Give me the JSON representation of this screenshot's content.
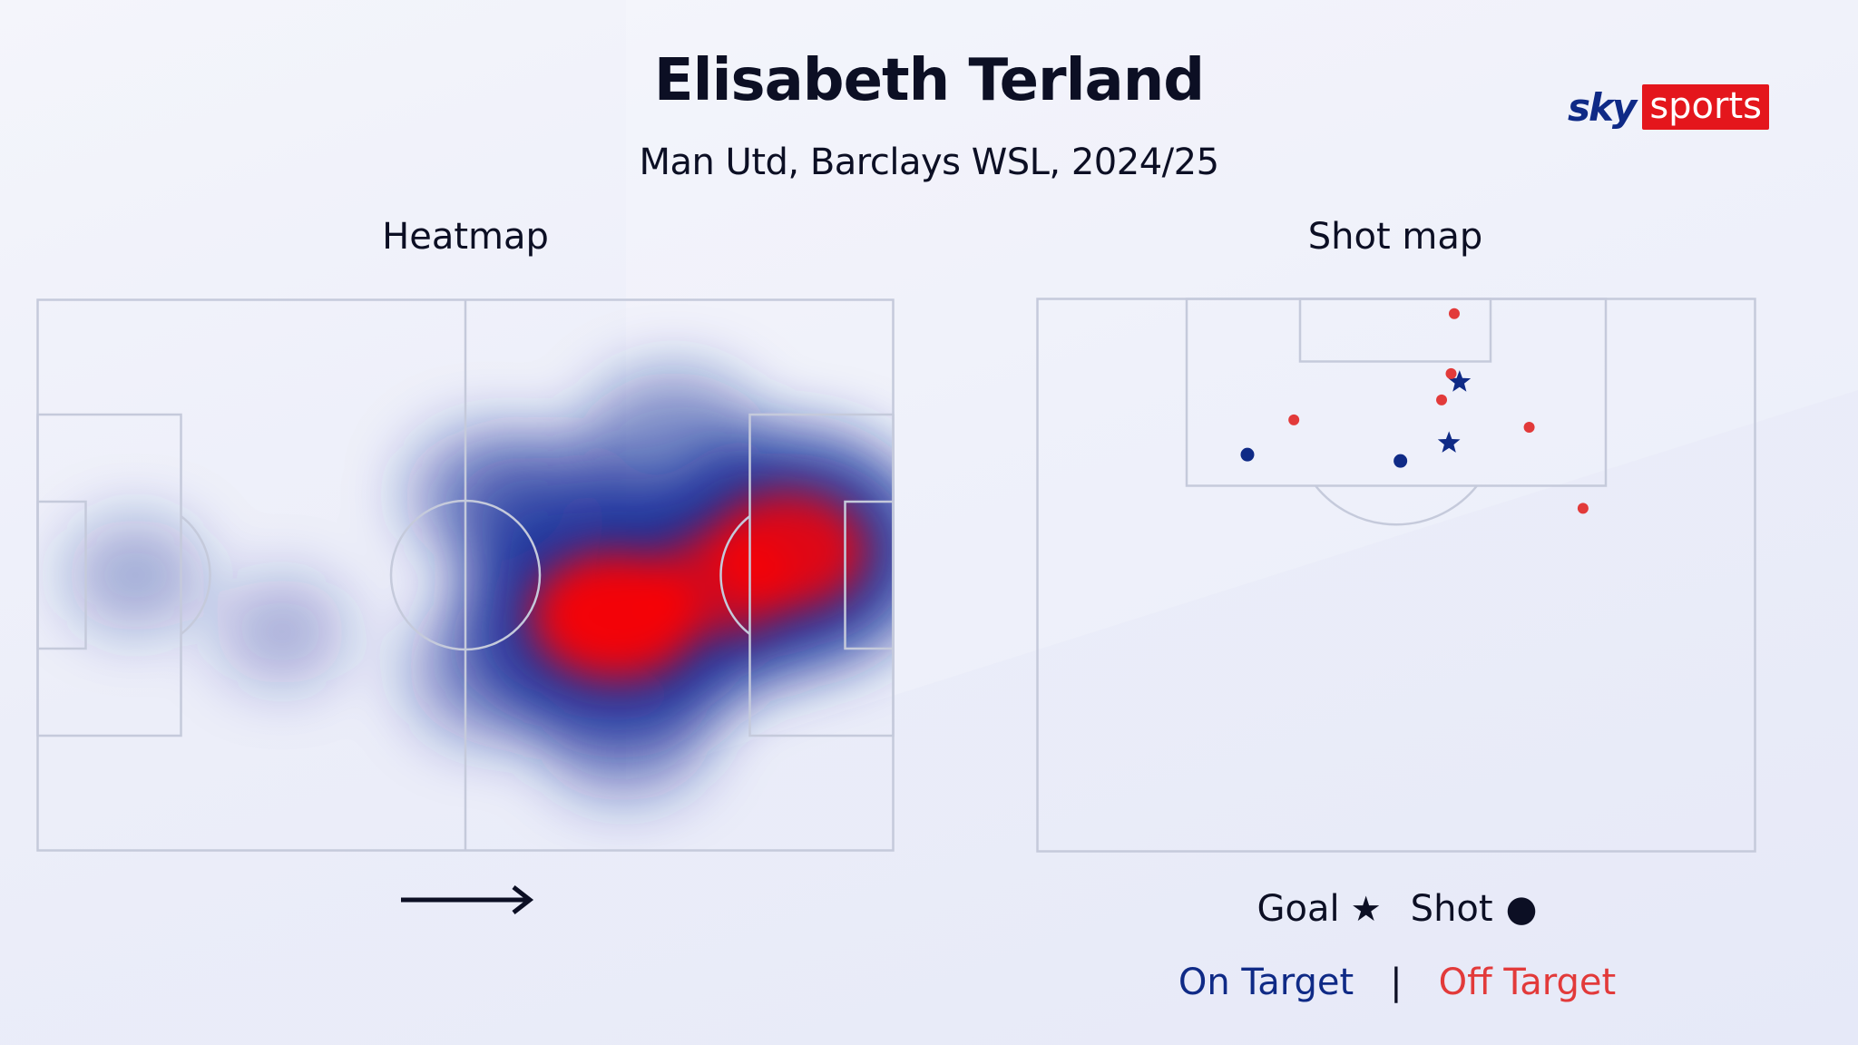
{
  "header": {
    "title": "Elisabeth Terland",
    "subtitle": "Man Utd, Barclays WSL, 2024/25"
  },
  "logo": {
    "sky": "sky",
    "sports": "sports"
  },
  "colors": {
    "on_target": "#0f2a86",
    "off_target": "#e23a3a",
    "pitch_line": "#c5cadb",
    "heat_low": "#1a2f9a",
    "heat_high": "#ff0000"
  },
  "chart_data": [
    {
      "type": "heatmap",
      "title": "Heatmap",
      "pitch": {
        "length": 105,
        "width": 68
      },
      "attacking_direction": "right",
      "direction_icon": "right-arrow-icon",
      "hotspots": [
        {
          "x": 71,
          "y": 39,
          "intensity": 1.0
        },
        {
          "x": 92,
          "y": 31,
          "intensity": 0.9
        },
        {
          "x": 84,
          "y": 35,
          "intensity": 0.75
        },
        {
          "x": 63,
          "y": 27,
          "intensity": 0.45
        },
        {
          "x": 78,
          "y": 18,
          "intensity": 0.35
        },
        {
          "x": 55,
          "y": 24,
          "intensity": 0.25
        },
        {
          "x": 56,
          "y": 46,
          "intensity": 0.3
        },
        {
          "x": 72,
          "y": 53,
          "intensity": 0.3
        },
        {
          "x": 12,
          "y": 34,
          "intensity": 0.14
        },
        {
          "x": 30,
          "y": 41,
          "intensity": 0.1
        }
      ]
    },
    {
      "type": "scatter",
      "title": "Shot map",
      "view": "attacking half, goal at top",
      "legend": {
        "goal_label": "Goal",
        "goal_symbol": "★",
        "shot_label": "Shot",
        "shot_symbol": "●",
        "on_target_label": "On Target",
        "separator": "|",
        "off_target_label": "Off Target"
      },
      "shots": [
        {
          "x": 39.5,
          "y": 1.4,
          "result": "shot",
          "on_target": false
        },
        {
          "x": 40.0,
          "y": 7.9,
          "result": "goal",
          "on_target": true
        },
        {
          "x": 39.0,
          "y": 13.7,
          "result": "goal",
          "on_target": true
        },
        {
          "x": 39.2,
          "y": 7.1,
          "result": "shot",
          "on_target": false
        },
        {
          "x": 38.3,
          "y": 9.6,
          "result": "shot",
          "on_target": false
        },
        {
          "x": 24.3,
          "y": 11.5,
          "result": "shot",
          "on_target": false
        },
        {
          "x": 46.6,
          "y": 12.2,
          "result": "shot",
          "on_target": false
        },
        {
          "x": 19.9,
          "y": 14.8,
          "result": "shot",
          "on_target": true
        },
        {
          "x": 34.4,
          "y": 15.4,
          "result": "shot",
          "on_target": true
        },
        {
          "x": 51.7,
          "y": 19.9,
          "result": "shot",
          "on_target": false
        }
      ]
    }
  ]
}
